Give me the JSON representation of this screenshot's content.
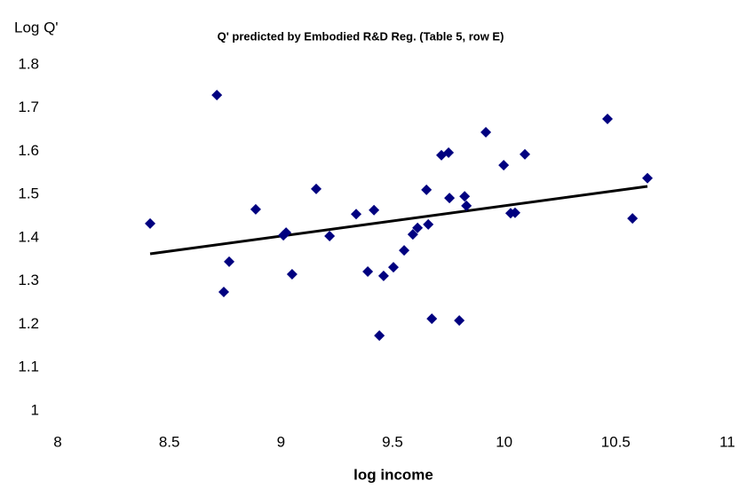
{
  "chart_data": {
    "type": "scatter",
    "title": "Q' predicted by Embodied R&D Reg. (Table 5, row E)",
    "y_label": "Log Q'",
    "x_label": "log income",
    "x": [
      8.414,
      8.713,
      8.744,
      8.768,
      8.887,
      9.011,
      9.023,
      9.05,
      9.158,
      9.218,
      9.337,
      9.389,
      9.417,
      9.441,
      9.46,
      9.504,
      9.552,
      9.591,
      9.612,
      9.652,
      9.66,
      9.676,
      9.719,
      9.751,
      9.755,
      9.799,
      9.823,
      9.831,
      9.918,
      9.998,
      10.029,
      10.049,
      10.093,
      10.463,
      10.575,
      10.642
    ],
    "values": [
      1.433,
      1.73,
      1.275,
      1.345,
      1.466,
      1.406,
      1.412,
      1.316,
      1.513,
      1.404,
      1.455,
      1.322,
      1.464,
      1.174,
      1.312,
      1.332,
      1.371,
      1.408,
      1.423,
      1.511,
      1.431,
      1.213,
      1.591,
      1.597,
      1.492,
      1.209,
      1.496,
      1.474,
      1.644,
      1.568,
      1.457,
      1.458,
      1.593,
      1.675,
      1.445,
      1.538
    ],
    "color": "#000080",
    "trendline": {
      "x": [
        8.414,
        10.642
      ],
      "values": [
        1.363,
        1.519
      ],
      "color": "#000000"
    },
    "xlim": [
      8,
      11
    ],
    "xticks": [
      8,
      8.5,
      9,
      9.5,
      10,
      10.5,
      11
    ],
    "ylim": [
      1,
      1.8
    ],
    "yticks": [
      1,
      1.1,
      1.2,
      1.3,
      1.4,
      1.5,
      1.6,
      1.7,
      1.8
    ]
  }
}
